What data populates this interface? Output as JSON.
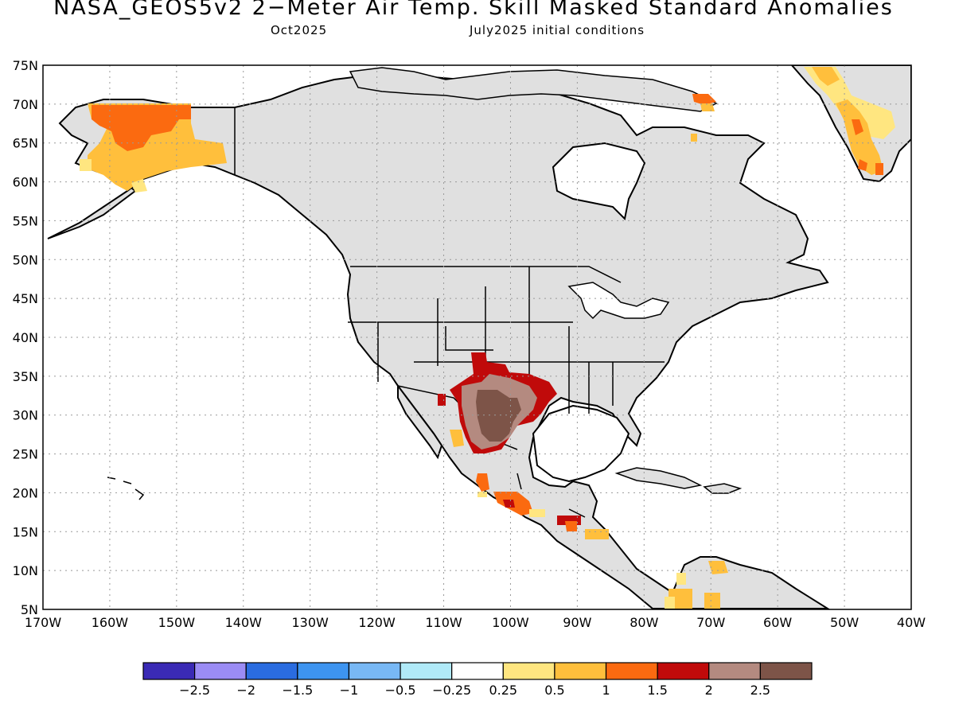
{
  "title": "NASA_GEOS5v2 2−Meter Air Temp. Skill Masked Standard Anomalies",
  "subtitle_left": "Oct2025",
  "subtitle_right": "July2025 initial conditions",
  "map": {
    "region": "North America",
    "lat_labels": [
      "75N",
      "70N",
      "65N",
      "60N",
      "55N",
      "50N",
      "45N",
      "40N",
      "35N",
      "30N",
      "25N",
      "20N",
      "15N",
      "10N",
      "5N"
    ],
    "lon_labels": [
      "170W",
      "160W",
      "150W",
      "140W",
      "130W",
      "120W",
      "110W",
      "100W",
      "90W",
      "80W",
      "70W",
      "60W",
      "50W",
      "40W"
    ],
    "lat_range": [
      5,
      75
    ],
    "lon_range": [
      -170,
      -40
    ],
    "grid": true,
    "masked_color": "#e0e0e0",
    "land_outline_color": "#000000"
  },
  "colorbar": {
    "colors": [
      "#3a2ab5",
      "#9b8cf5",
      "#2a6ce0",
      "#3d94f0",
      "#78b8f5",
      "#b0eaf8",
      "#ffffff",
      "#ffe680",
      "#ffbf3c",
      "#fb6a10",
      "#c00a0a",
      "#b48a80",
      "#7d5448"
    ],
    "tick_labels": [
      "−2.5",
      "−2",
      "−1.5",
      "−1",
      "−0.5",
      "−0.25",
      "0.25",
      "0.5",
      "1",
      "1.5",
      "2",
      "2.5"
    ]
  },
  "anomaly_regions": [
    {
      "name": "Alaska",
      "category": "0.5"
    },
    {
      "name": "Greenland",
      "category": "0.5"
    },
    {
      "name": "Texas / Southern Plains",
      "category": "2.5"
    },
    {
      "name": "Southern Mexico",
      "category": "1.5"
    },
    {
      "name": "Central America",
      "category": "1.5"
    },
    {
      "name": "Northern South America",
      "category": "0.5"
    },
    {
      "name": "Baffin Island",
      "category": "1.5"
    }
  ]
}
